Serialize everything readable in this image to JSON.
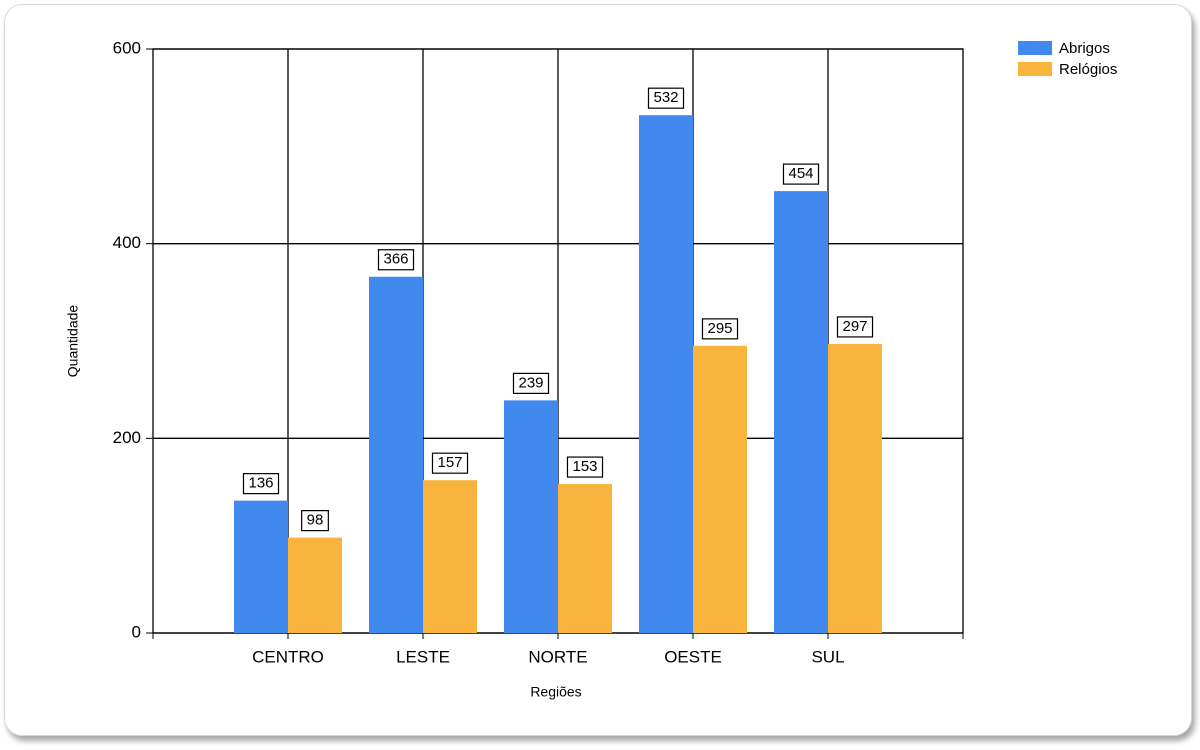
{
  "chart_data": {
    "type": "bar",
    "x_label": "Regiões",
    "y_label": "Quantidade",
    "categories": [
      "CENTRO",
      "LESTE",
      "NORTE",
      "OESTE",
      "SUL"
    ],
    "series": [
      {
        "name": "Abrigos",
        "color": "#4189ee",
        "values": [
          136,
          366,
          239,
          532,
          454
        ]
      },
      {
        "name": "Relógios",
        "color": "#f9b43e",
        "values": [
          98,
          157,
          153,
          295,
          297
        ]
      }
    ],
    "ylim": [
      0,
      600
    ],
    "yticks": [
      0,
      200,
      400,
      600
    ],
    "grid": true,
    "legend": "top-right"
  }
}
